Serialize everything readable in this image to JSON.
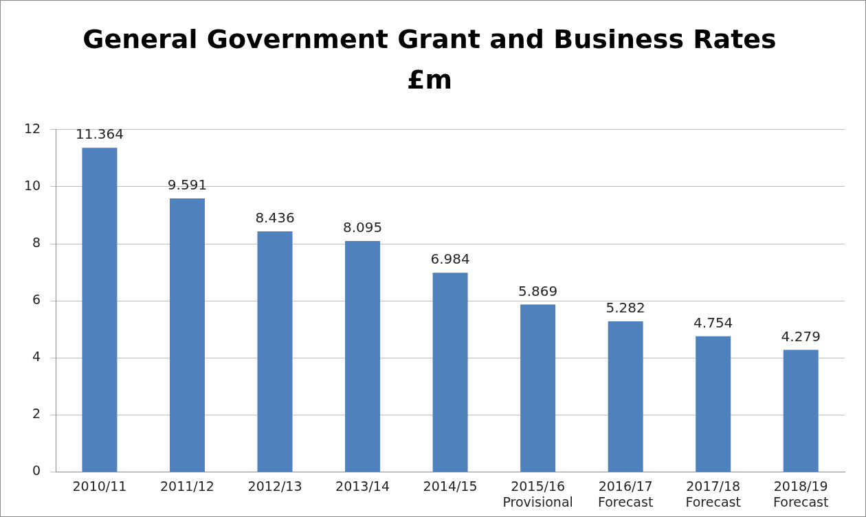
{
  "chart_data": {
    "type": "bar",
    "title": "General Government Grant and Business Rates\n£m",
    "categories": [
      "2010/11",
      "2011/12",
      "2012/13",
      "2013/14",
      "2014/15",
      "2015/16\nProvisional",
      "2016/17\nForecast",
      "2017/18\nForecast",
      "2018/19\nForecast"
    ],
    "values": [
      11.364,
      9.591,
      8.436,
      8.095,
      6.984,
      5.869,
      5.282,
      4.754,
      4.279
    ],
    "color": "#4f81bd",
    "ylim": [
      0,
      12
    ],
    "yticks": [
      0,
      2,
      4,
      6,
      8,
      10,
      12
    ],
    "grid": "y",
    "data_labels": true,
    "legend": false
  }
}
